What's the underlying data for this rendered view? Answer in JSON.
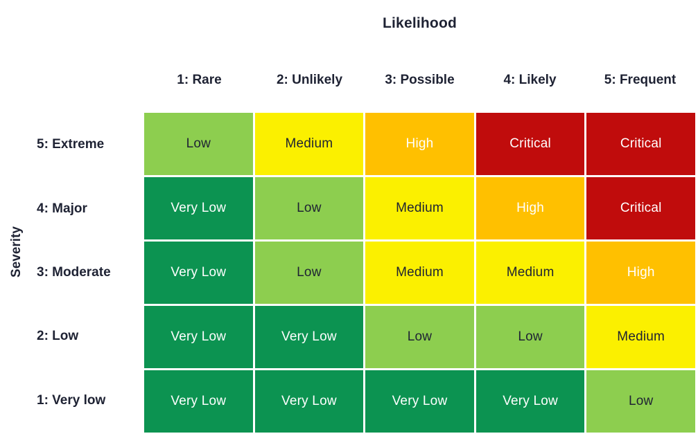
{
  "title": "Likelihood",
  "y_axis_title": "Severity",
  "columns": [
    "1: Rare",
    "2: Unlikely",
    "3: Possible",
    "4: Likely",
    "5: Frequent"
  ],
  "rows": [
    "5: Extreme",
    "4: Major",
    "3: Moderate",
    "2: Low",
    "1: Very low"
  ],
  "levels": {
    "very_low": {
      "label": "Very Low",
      "bg": "#0C9351",
      "fg": "#FFFFFF"
    },
    "low": {
      "label": "Low",
      "bg": "#8DCE4F",
      "fg": "#1E2233"
    },
    "medium": {
      "label": "Medium",
      "bg": "#FBF000",
      "fg": "#1E2233"
    },
    "high": {
      "label": "High",
      "bg": "#FFC000",
      "fg": "#FFFFFF"
    },
    "critical": {
      "label": "Critical",
      "bg": "#C00C0C",
      "fg": "#FFFFFF"
    }
  },
  "cells": [
    [
      "low",
      "medium",
      "high",
      "critical",
      "critical"
    ],
    [
      "very_low",
      "low",
      "medium",
      "high",
      "critical"
    ],
    [
      "very_low",
      "low",
      "medium",
      "medium",
      "high"
    ],
    [
      "very_low",
      "very_low",
      "low",
      "low",
      "medium"
    ],
    [
      "very_low",
      "very_low",
      "very_low",
      "very_low",
      "low"
    ]
  ],
  "colors": {
    "background": "#FFFFFF",
    "text_dark": "#1E2233",
    "text_light": "#FFFFFF",
    "very_low": "#0C9351",
    "low": "#8DCE4F",
    "medium": "#FBF000",
    "high": "#FFC000",
    "critical": "#C00C0C"
  },
  "chart_data": {
    "type": "heatmap",
    "title": "Likelihood",
    "xlabel": "Likelihood",
    "ylabel": "Severity",
    "x_categories": [
      "1: Rare",
      "2: Unlikely",
      "3: Possible",
      "4: Likely",
      "5: Frequent"
    ],
    "y_categories": [
      "5: Extreme",
      "4: Major",
      "3: Moderate",
      "2: Low",
      "1: Very low"
    ],
    "values": [
      [
        "Low",
        "Medium",
        "High",
        "Critical",
        "Critical"
      ],
      [
        "Very Low",
        "Low",
        "Medium",
        "High",
        "Critical"
      ],
      [
        "Very Low",
        "Low",
        "Medium",
        "Medium",
        "High"
      ],
      [
        "Very Low",
        "Very Low",
        "Low",
        "Low",
        "Medium"
      ],
      [
        "Very Low",
        "Very Low",
        "Very Low",
        "Very Low",
        "Low"
      ]
    ],
    "legend_position": "none",
    "grid": false
  }
}
